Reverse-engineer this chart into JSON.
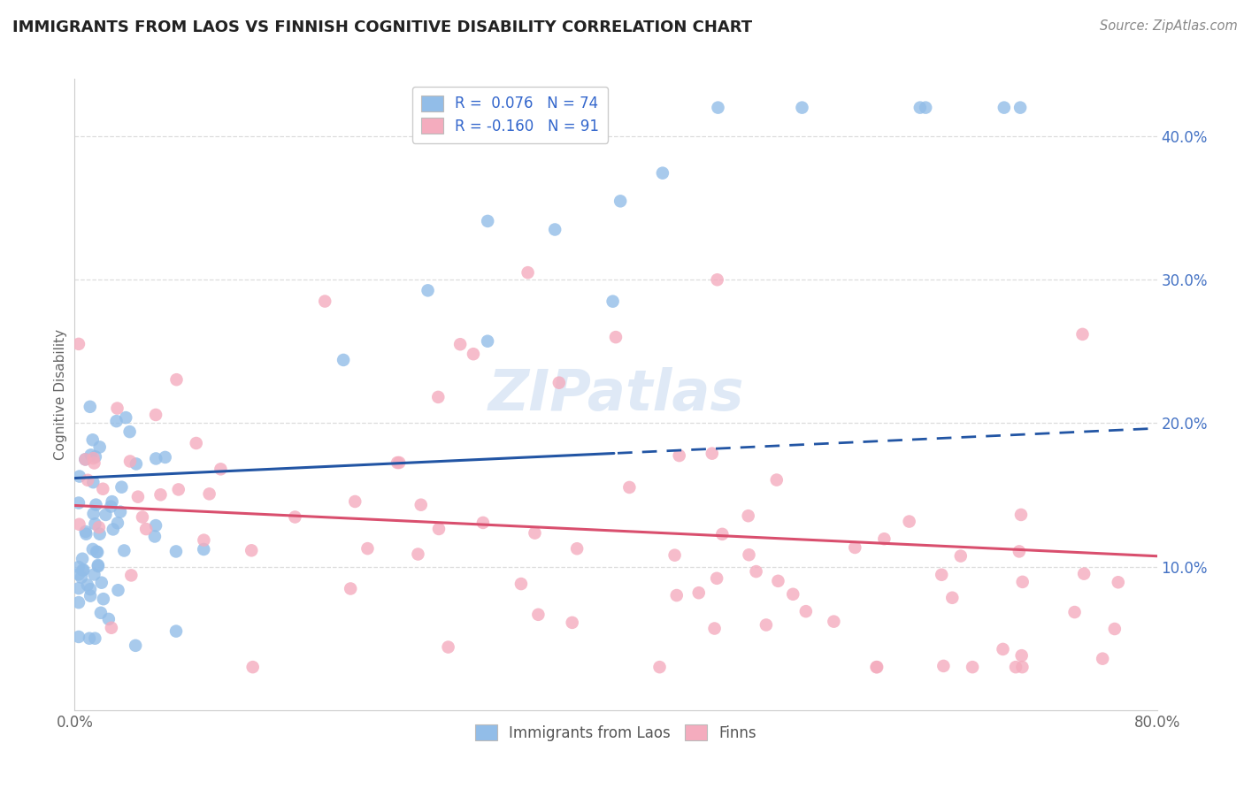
{
  "title": "IMMIGRANTS FROM LAOS VS FINNISH COGNITIVE DISABILITY CORRELATION CHART",
  "source": "Source: ZipAtlas.com",
  "ylabel": "Cognitive Disability",
  "legend_labels": [
    "Immigrants from Laos",
    "Finns"
  ],
  "r_laos": 0.076,
  "n_laos": 74,
  "r_finns": -0.16,
  "n_finns": 91,
  "xlim": [
    0.0,
    0.8
  ],
  "ylim": [
    0.0,
    0.44
  ],
  "ytick_vals": [
    0.1,
    0.2,
    0.3,
    0.4
  ],
  "ytick_labels": [
    "10.0%",
    "20.0%",
    "30.0%",
    "40.0%"
  ],
  "xtick_vals": [
    0.0,
    0.8
  ],
  "xtick_labels": [
    "0.0%",
    "80.0%"
  ],
  "color_laos": "#92BDE8",
  "color_finns": "#F4ACBE",
  "trendline_laos": "#2255A4",
  "trendline_finns": "#D94F6E",
  "watermark": "ZIPatlas",
  "background_color": "#FFFFFF",
  "grid_color": "#DDDDDD",
  "axis_color": "#AAAAAA",
  "title_color": "#222222",
  "label_color": "#666666",
  "tick_color": "#4472C4"
}
